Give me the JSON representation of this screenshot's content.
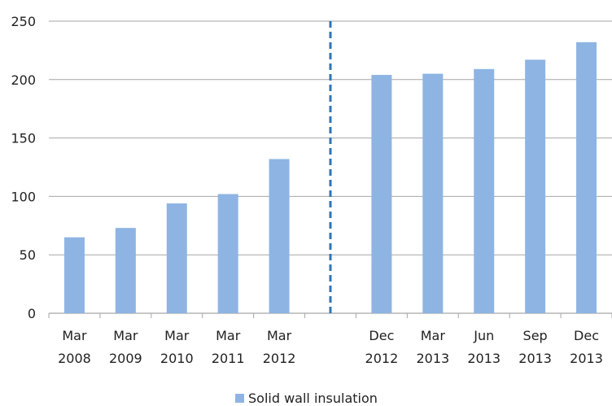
{
  "chart_data": {
    "type": "bar",
    "categories": [
      [
        "Mar",
        "2008"
      ],
      [
        "Mar",
        "2009"
      ],
      [
        "Mar",
        "2010"
      ],
      [
        "Mar",
        "2011"
      ],
      [
        "Mar",
        "2012"
      ],
      [
        "",
        ""
      ],
      [
        "Dec",
        "2012"
      ],
      [
        "Mar",
        "2013"
      ],
      [
        "Jun",
        "2013"
      ],
      [
        "Sep",
        "2013"
      ],
      [
        "Dec",
        "2013"
      ]
    ],
    "series": [
      {
        "name": "Solid wall insulation",
        "values": [
          65,
          73,
          94,
          102,
          132,
          null,
          204,
          205,
          209,
          217,
          232
        ]
      }
    ],
    "title": "",
    "xlabel": "",
    "ylabel": "",
    "ylim": [
      0,
      250
    ],
    "yticks": [
      0,
      50,
      100,
      150,
      200,
      250
    ],
    "grid": true,
    "legend_position": "bottom",
    "colors": {
      "bar": "#8EB4E3",
      "grid": "#A6A6A6",
      "divider": "#2E75B6",
      "text": "#222222"
    }
  }
}
